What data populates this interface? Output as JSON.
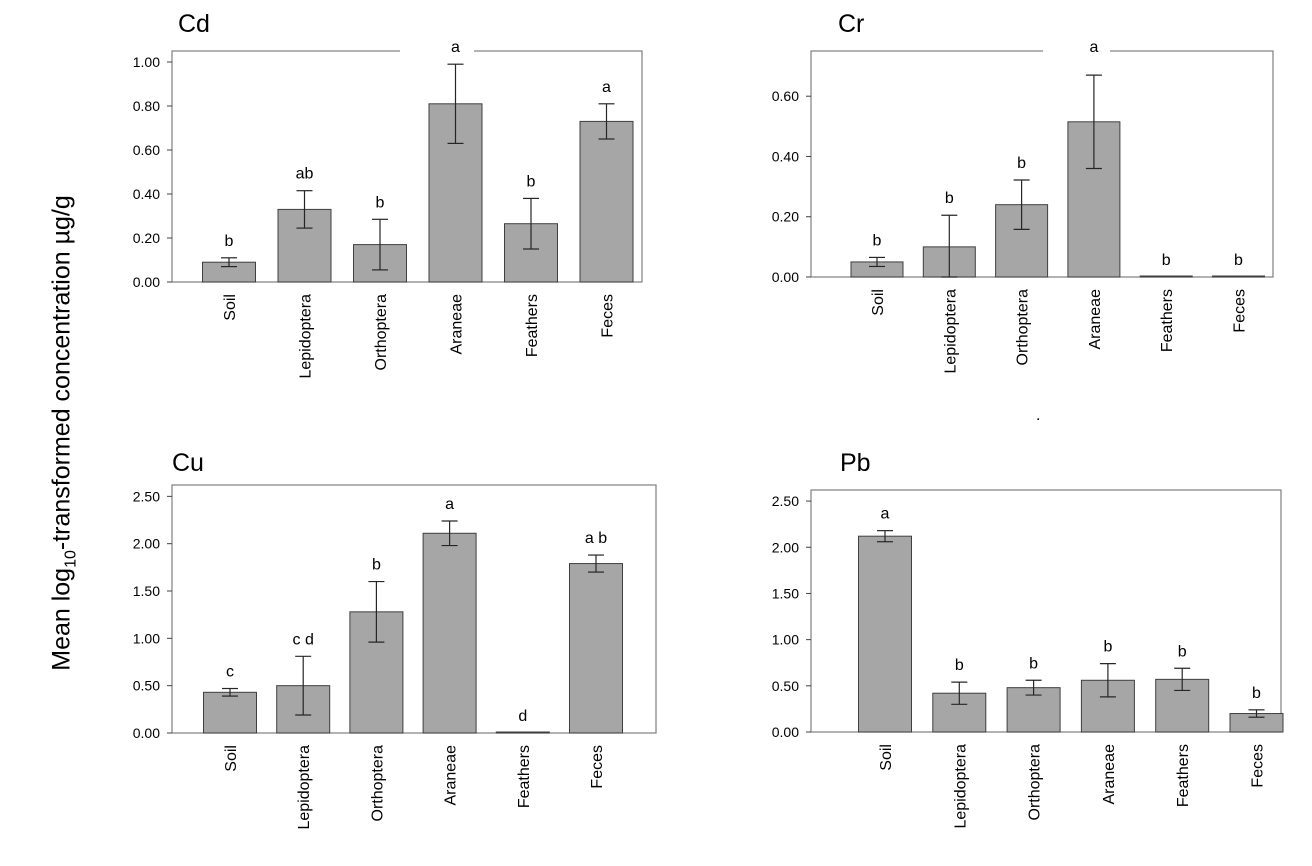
{
  "y_axis_label": {
    "prefix": "Mean log",
    "subscript": "10",
    "suffix": "-transformed concentration µg/g"
  },
  "stray_mark": ".",
  "chart_data": [
    {
      "type": "bar",
      "title": "Cd",
      "categories": [
        "Soil",
        "Lepidoptera",
        "Orthoptera",
        "Araneae",
        "Feathers",
        "Feces"
      ],
      "values": [
        0.09,
        0.33,
        0.17,
        0.81,
        0.265,
        0.73
      ],
      "errors": [
        0.02,
        0.085,
        0.115,
        0.18,
        0.115,
        0.08
      ],
      "significance": [
        "b",
        "ab",
        "b",
        "a",
        "b",
        "a"
      ],
      "ylim": [
        0,
        1.05
      ],
      "yticks": [
        "0.00",
        "0.20",
        "0.40",
        "0.60",
        "0.80",
        "1.00"
      ]
    },
    {
      "type": "bar",
      "title": "Cr",
      "categories": [
        "Soil",
        "Lepidoptera",
        "Orthoptera",
        "Araneae",
        "Feathers",
        "Feces"
      ],
      "values": [
        0.05,
        0.1,
        0.24,
        0.515,
        0.0,
        0.0
      ],
      "errors": [
        0.015,
        0.105,
        0.082,
        0.155,
        0.0,
        0.0
      ],
      "significance": [
        "b",
        "b",
        "b",
        "a",
        "b",
        "b"
      ],
      "ylim": [
        0,
        0.75
      ],
      "yticks": [
        "0.00",
        "0.20",
        "0.40",
        "0.60"
      ]
    },
    {
      "type": "bar",
      "title": "Cu",
      "categories": [
        "Soil",
        "Lepidoptera",
        "Orthoptera",
        "Araneae",
        "Feathers",
        "Feces"
      ],
      "values": [
        0.43,
        0.5,
        1.28,
        2.11,
        0.0,
        1.79
      ],
      "errors": [
        0.04,
        0.31,
        0.32,
        0.13,
        0.0,
        0.09
      ],
      "significance": [
        "c",
        "c d",
        "b",
        "a",
        "d",
        "a b"
      ],
      "ylim": [
        0,
        2.62
      ],
      "yticks": [
        "0.00",
        "0.50",
        "1.00",
        "1.50",
        "2.00",
        "2.50"
      ]
    },
    {
      "type": "bar",
      "title": "Pb",
      "categories": [
        "Soil",
        "Lepidoptera",
        "Orthoptera",
        "Araneae",
        "Feathers",
        "Feces"
      ],
      "values": [
        2.12,
        0.42,
        0.48,
        0.56,
        0.57,
        0.2
      ],
      "errors": [
        0.06,
        0.12,
        0.08,
        0.18,
        0.12,
        0.04
      ],
      "significance": [
        "a",
        "b",
        "b",
        "b",
        "b",
        "b"
      ],
      "ylim": [
        0,
        2.62
      ],
      "yticks": [
        "0.00",
        "0.50",
        "1.00",
        "1.50",
        "2.00",
        "2.50"
      ]
    }
  ]
}
